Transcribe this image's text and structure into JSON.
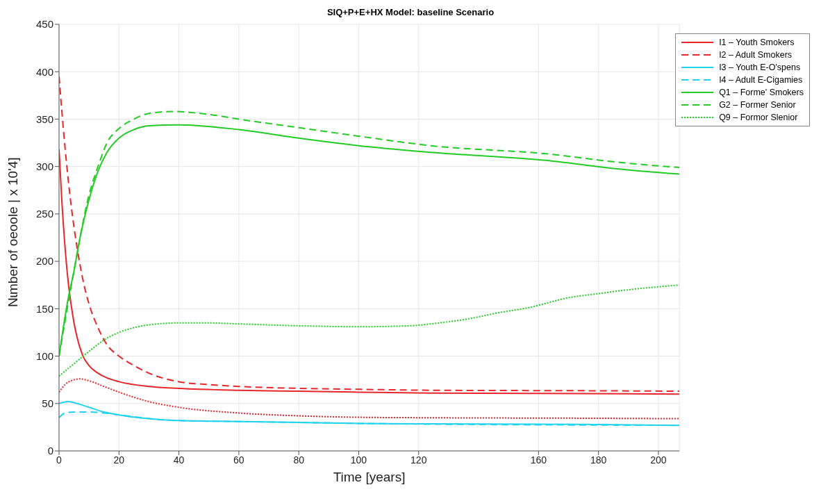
{
  "chart_data": {
    "type": "line",
    "title": "SIQ+P+E+HX Model: baseline Scenario",
    "xlabel": "Time [years]",
    "ylabel": "Nɩmber of oeoole | x 10'4]",
    "xlim": [
      0,
      207
    ],
    "ylim": [
      0,
      450
    ],
    "xticks": [
      0,
      20,
      40,
      60,
      80,
      100,
      120,
      160,
      180,
      200
    ],
    "yticks": [
      0,
      50,
      100,
      150,
      200,
      250,
      300,
      350,
      400,
      450
    ],
    "grid": true,
    "legend": "top right",
    "series": [
      {
        "name": "I1 – Youth Smokers",
        "color": "#e8262b",
        "line_style": "solid",
        "x": [
          0,
          1,
          2,
          3,
          4,
          5,
          6,
          8,
          10,
          13,
          16,
          20,
          30,
          40,
          60,
          80,
          100,
          124,
          175,
          207
        ],
        "values": [
          318,
          260,
          215,
          180,
          155,
          135,
          120,
          100,
          90,
          82,
          77,
          73,
          68,
          66,
          64,
          63,
          62,
          61,
          60.5,
          60
        ]
      },
      {
        "name": "I2 – Adult Smokers",
        "color": "#e8262b",
        "line_style": "dashed",
        "x": [
          0,
          2,
          4,
          6,
          8,
          10,
          13,
          16,
          20,
          25,
          30,
          40,
          50,
          60,
          80,
          100,
          124,
          175,
          207
        ],
        "values": [
          395,
          320,
          260,
          215,
          180,
          155,
          130,
          112,
          100,
          90,
          82,
          73,
          70,
          68,
          66,
          65,
          64,
          63.5,
          63
        ]
      },
      {
        "name": "I3 – Youth E-O'spens",
        "color": "#22d3ee",
        "line_style": "solid",
        "x": [
          0,
          3,
          6,
          10,
          15,
          20,
          30,
          40,
          60,
          80,
          100,
          124,
          175,
          207
        ],
        "values": [
          50,
          52,
          50,
          46,
          41,
          38,
          34,
          32,
          31,
          30,
          29,
          28.5,
          28,
          27
        ]
      },
      {
        "name": "I4 – Adult E-Cigamies",
        "color": "#22d3ee",
        "line_style": "dashed",
        "x": [
          0,
          2,
          5,
          10,
          15,
          20,
          25,
          30,
          40,
          60,
          80,
          100,
          207
        ],
        "values": [
          35,
          40,
          41,
          41,
          40,
          38,
          36,
          34,
          32,
          31,
          30,
          29,
          27
        ]
      },
      {
        "name": "Q1 – Forme' Smokers",
        "color": "#22cc22",
        "line_style": "solid",
        "x": [
          0,
          3,
          5,
          7,
          10,
          13,
          16,
          20,
          25,
          30,
          40,
          60,
          80,
          100,
          124,
          164,
          185,
          207
        ],
        "values": [
          100,
          160,
          190,
          225,
          265,
          295,
          315,
          330,
          339,
          343,
          344,
          339,
          330,
          322,
          315,
          306,
          298,
          292
        ]
      },
      {
        "name": "G2 – Former Senior",
        "color": "#22cc22",
        "line_style": "dashed",
        "x": [
          0,
          5,
          10,
          13,
          16,
          20,
          25,
          30,
          38,
          50,
          60,
          80,
          100,
          124,
          164,
          185,
          207
        ],
        "values": [
          100,
          190,
          270,
          300,
          325,
          340,
          350,
          356,
          358,
          355,
          350,
          341,
          332,
          322,
          313,
          305,
          299
        ]
      },
      {
        "name": "Q9 – Formor Slenior",
        "color": "#22cc22",
        "line_style": "dotted",
        "x": [
          0,
          5,
          10,
          15,
          20,
          25,
          30,
          40,
          50,
          60,
          80,
          100,
          117,
          124,
          136,
          147,
          158,
          164,
          169,
          175,
          180,
          190,
          207
        ],
        "values": [
          79,
          92,
          105,
          117,
          125,
          130,
          133,
          135,
          135,
          134,
          132,
          131,
          132,
          134,
          139,
          146,
          152,
          157,
          161,
          164,
          166,
          170,
          175
        ]
      },
      {
        "color": "#e8262b",
        "line_style": "dotted",
        "x": [
          0,
          2,
          4,
          7,
          10,
          15,
          20,
          30,
          40,
          60,
          80,
          100,
          124,
          175,
          207
        ],
        "values": [
          62,
          70,
          74,
          76,
          74,
          68,
          62,
          52,
          46,
          40,
          37,
          35.5,
          35,
          34.5,
          34
        ]
      }
    ]
  }
}
